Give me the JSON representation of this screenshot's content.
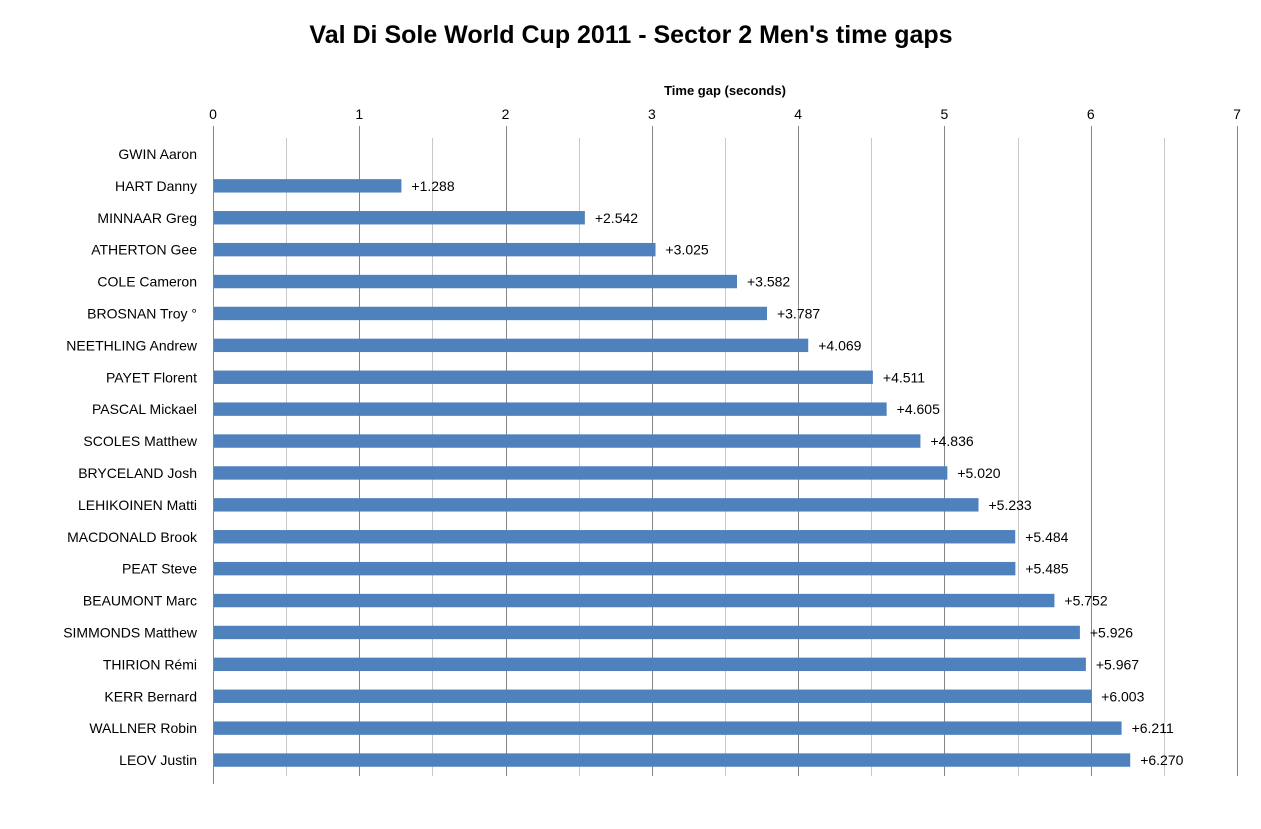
{
  "chart_data": {
    "type": "bar",
    "orientation": "horizontal",
    "title": "Val Di Sole World Cup 2011 - Sector 2 Men's time gaps",
    "xlabel": "Time gap (seconds)",
    "ylabel": "",
    "xaxis_position": "top",
    "xlim": [
      0,
      7
    ],
    "xticks": [
      "0",
      "1",
      "2",
      "3",
      "4",
      "5",
      "6",
      "7"
    ],
    "grid": true,
    "legend": "none",
    "bar_color": "#4F81BD",
    "categories": [
      "GWIN Aaron",
      "HART Danny",
      "MINNAAR Greg",
      "ATHERTON Gee",
      "COLE Cameron",
      "BROSNAN Troy °",
      "NEETHLING Andrew",
      "PAYET Florent",
      "PASCAL Mickael",
      "SCOLES Matthew",
      "BRYCELAND Josh",
      "LEHIKOINEN Matti",
      "MACDONALD Brook",
      "PEAT Steve",
      "BEAUMONT Marc",
      "SIMMONDS Matthew",
      "THIRION Rémi",
      "KERR Bernard",
      "WALLNER Robin",
      "LEOV Justin"
    ],
    "values": [
      0,
      1.288,
      2.542,
      3.025,
      3.582,
      3.787,
      4.069,
      4.511,
      4.605,
      4.836,
      5.02,
      5.233,
      5.484,
      5.485,
      5.752,
      5.926,
      5.967,
      6.003,
      6.211,
      6.27
    ],
    "data_labels": [
      "",
      "+1.288",
      "+2.542",
      "+3.025",
      "+3.582",
      "+3.787",
      "+4.069",
      "+4.511",
      "+4.605",
      "+4.836",
      "+5.020",
      "+5.233",
      "+5.484",
      "+5.485",
      "+5.752",
      "+5.926",
      "+5.967",
      "+6.003",
      "+6.211",
      "+6.270"
    ]
  }
}
